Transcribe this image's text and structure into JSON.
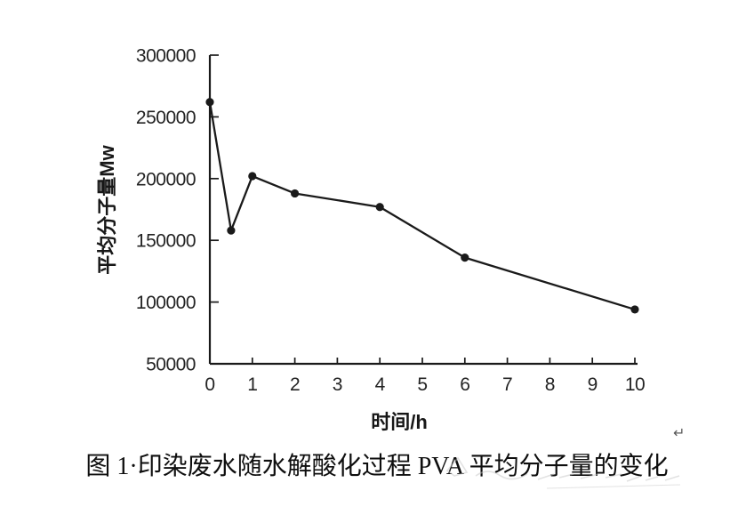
{
  "figure": {
    "caption": "图 1·印染废水随水解酸化过程 PVA 平均分子量的变化",
    "return_mark": "↵"
  },
  "chart_data": {
    "type": "line",
    "title": "",
    "xlabel": "时间/h",
    "ylabel": "平均分子量Mw",
    "x": [
      0,
      0.5,
      1,
      2,
      4,
      6,
      10
    ],
    "y": [
      262000,
      158000,
      202000,
      188000,
      177000,
      136000,
      94000
    ],
    "xlim": [
      0,
      10
    ],
    "ylim": [
      50000,
      300000
    ],
    "x_ticks": [
      0,
      1,
      2,
      3,
      4,
      5,
      6,
      7,
      8,
      9,
      10
    ],
    "y_ticks": [
      50000,
      100000,
      150000,
      200000,
      250000,
      300000
    ],
    "grid": false,
    "legend": "none",
    "line_color": "#1a1a1a",
    "marker": "circle",
    "marker_color": "#1a1a1a",
    "axis_color": "#1a1a1a"
  }
}
